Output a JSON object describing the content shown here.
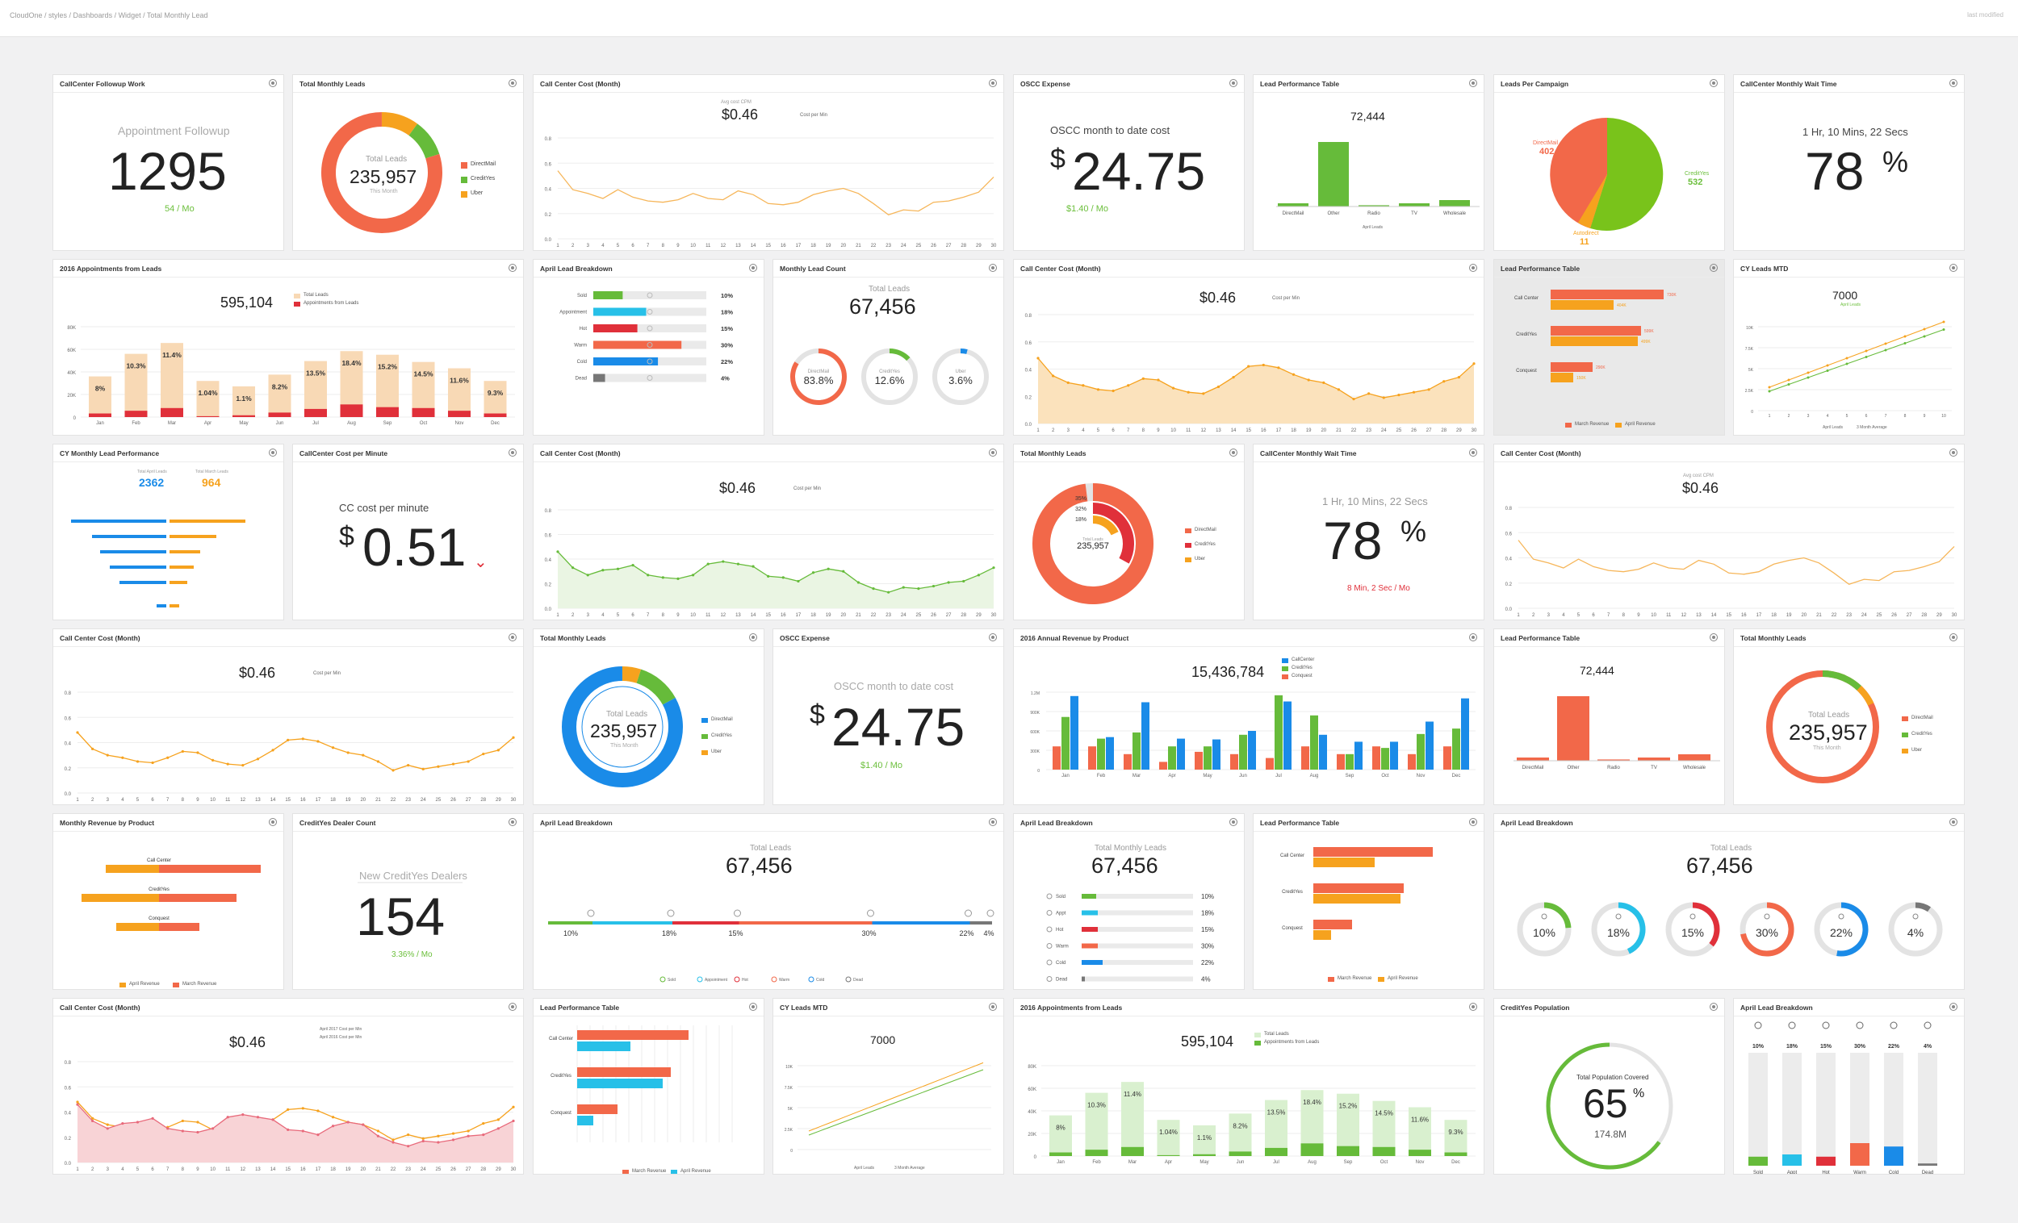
{
  "breadcrumb": "CloudOne / styles / Dashboards / Widget / Total Monthly Lead",
  "header_right": "last modified",
  "colors": {
    "orange": "#f26849",
    "green": "#66bb3a",
    "amber": "#f6a21e",
    "blue": "#1a8be8",
    "red": "#e0303a",
    "cyan": "#27c0e8",
    "peach": "#f8d9b5"
  },
  "w": {
    "followup": {
      "title": "CallCenter Followup Work",
      "label": "Appointment Followup",
      "value": "1295",
      "delta": "54 / Mo"
    },
    "tml1": {
      "title": "Total Monthly Leads",
      "center_label": "Total Leads",
      "value": "235,957",
      "sub": "This Month",
      "legend": [
        "DirectMail",
        "CreditYes",
        "Uber"
      ]
    },
    "ccc1": {
      "title": "Call Center Cost (Month)",
      "avg_label": "Avg cost CPM",
      "value": "$0.46",
      "legend": "Cost per Min"
    },
    "oscc1": {
      "title": "OSCC Expense",
      "label": "OSCC month to date cost",
      "currency": "$",
      "value": "24.75",
      "delta": "$1.40 / Mo"
    },
    "lpt1": {
      "title": "Lead Performance Table",
      "value": "72,444",
      "sub": "April Leads",
      "cats": [
        "DirectMail",
        "Other",
        "Radio",
        "TV",
        "Wholesale"
      ],
      "legend": "April Leads"
    },
    "lpc": {
      "title": "Leads Per Campaign",
      "a_label": "DirectMail",
      "a_val": "402",
      "b_label": "CreditYes",
      "b_val": "532",
      "c_label": "Autodirect",
      "c_val": "11"
    },
    "wait1": {
      "title": "CallCenter Monthly Wait Time",
      "label": "1 Hr, 10 Mins, 22 Secs",
      "value": "78",
      "unit": "%"
    },
    "appt1": {
      "title": "2016 Appointments from Leads",
      "value": "595,104",
      "legend": [
        "Total Leads",
        "Appointments from Leads"
      ],
      "months": [
        "Jan",
        "Feb",
        "Mar",
        "Apr",
        "May",
        "Jun",
        "Jul",
        "Aug",
        "Sep",
        "Oct",
        "Nov",
        "Dec"
      ],
      "pct": [
        "8%",
        "10.3%",
        "11.4%",
        "1.04%",
        "1.1%",
        "8.2%",
        "13.5%",
        "18.4%",
        "15.2%",
        "14.5%",
        "11.6%",
        "9.3%"
      ]
    },
    "alb1": {
      "title": "April Lead Breakdown",
      "rows": [
        {
          "label": "Sold",
          "pct": "10%"
        },
        {
          "label": "Appointment",
          "pct": "18%"
        },
        {
          "label": "Hot",
          "pct": "15%"
        },
        {
          "label": "Warm",
          "pct": "30%"
        },
        {
          "label": "Cold",
          "pct": "22%"
        },
        {
          "label": "Dead",
          "pct": "4%"
        }
      ]
    },
    "mlc": {
      "title": "Monthly Lead Count",
      "label": "Total Leads",
      "value": "67,456",
      "rings": [
        {
          "label": "DirectMail",
          "pct": "83.8%"
        },
        {
          "label": "CreditYes",
          "pct": "12.6%"
        },
        {
          "label": "Uber",
          "pct": "3.6%"
        }
      ]
    },
    "ccc2": {
      "title": "Call Center Cost (Month)",
      "value": "$0.46",
      "legend": "Cost per Min"
    },
    "lpt2": {
      "title": "Lead Performance Table",
      "cats": [
        "Call Center",
        "CreditYes",
        "Conquest"
      ],
      "legend": [
        "March Revenue",
        "April Revenue"
      ]
    },
    "cymtd1": {
      "title": "CY Leads MTD",
      "value": "7000",
      "sub": "April Leads",
      "legend": [
        "April Leads",
        "3 Month Average"
      ]
    },
    "cymlp": {
      "title": "CY Monthly Lead Performance",
      "a_label": "Total April Leads",
      "a_val": "2362",
      "b_label": "Total March Leads",
      "b_val": "964"
    },
    "ccpm": {
      "title": "CallCenter Cost per Minute",
      "label": "CC cost per minute",
      "currency": "$",
      "value": "0.51"
    },
    "ccc3": {
      "title": "Call Center Cost (Month)",
      "value": "$0.46",
      "legend": "Cost per Min"
    },
    "tml2": {
      "title": "Total Monthly Leads",
      "center_label": "Total Leads",
      "value": "235,957",
      "pcts": [
        "35%",
        "32%",
        "18%"
      ],
      "legend": [
        "DirectMail",
        "CreditYes",
        "Uber"
      ]
    },
    "wait2": {
      "title": "CallCenter Monthly Wait Time",
      "label": "1 Hr, 10 Mins, 22 Secs",
      "value": "78",
      "unit": "%",
      "delta": "8 Min, 2 Sec / Mo"
    },
    "ccc4": {
      "title": "Call Center Cost (Month)",
      "value": "$0.46",
      "avg_label": "Avg cost CPM"
    },
    "ccc5": {
      "title": "Call Center Cost (Month)",
      "value": "$0.46",
      "legend": "Cost per Min"
    },
    "tml3": {
      "title": "Total Monthly Leads",
      "center_label": "Total Leads",
      "value": "235,957",
      "sub": "This Month",
      "legend": [
        "DirectMail",
        "CreditYes",
        "Uber"
      ]
    },
    "oscc2": {
      "title": "OSCC Expense",
      "label": "OSCC month to date cost",
      "currency": "$",
      "value": "24.75",
      "delta": "$1.40 / Mo"
    },
    "arp": {
      "title": "2016 Annual Revenue by Product",
      "value": "15,436,784",
      "legend": [
        "CallCenter",
        "CreditYes",
        "Conquest"
      ]
    },
    "lpt3": {
      "title": "Lead Performance Table",
      "value": "72,444",
      "cats": [
        "DirectMail",
        "Other",
        "Radio",
        "TV",
        "Wholesale"
      ]
    },
    "tml4": {
      "title": "Total Monthly Leads",
      "center_label": "Total Leads",
      "value": "235,957",
      "sub": "This Month",
      "legend": [
        "DirectMail",
        "CreditYes",
        "Uber"
      ]
    },
    "mrp": {
      "title": "Monthly Revenue by Product",
      "cats": [
        "Call Center",
        "CreditYes",
        "Conquest"
      ],
      "legend": [
        "April Revenue",
        "March Revenue"
      ]
    },
    "cydc": {
      "title": "CreditYes Dealer Count",
      "label": "New CreditYes Dealers",
      "value": "154",
      "delta": "3.36% / Mo"
    },
    "alb2": {
      "title": "April Lead Breakdown",
      "label": "Total Leads",
      "value": "67,456",
      "pcts": [
        "10%",
        "18%",
        "15%",
        "30%",
        "22%",
        "4%"
      ],
      "legend": [
        "Sold",
        "Appointment",
        "Hot",
        "Warm",
        "Cold",
        "Dead"
      ]
    },
    "alb3": {
      "title": "April Lead Breakdown",
      "label": "Total Monthly Leads",
      "value": "67,456",
      "rows": [
        {
          "label": "Sold",
          "pct": "10%"
        },
        {
          "label": "Appt",
          "pct": "18%"
        },
        {
          "label": "Hot",
          "pct": "15%"
        },
        {
          "label": "Warm",
          "pct": "30%"
        },
        {
          "label": "Cold",
          "pct": "22%"
        },
        {
          "label": "Dead",
          "pct": "4%"
        }
      ]
    },
    "lpt4": {
      "title": "Lead Performance Table",
      "cats": [
        "Call Center",
        "CreditYes",
        "Conquest"
      ],
      "legend": [
        "March Revenue",
        "April Revenue"
      ]
    },
    "alb4": {
      "title": "April Lead Breakdown",
      "label": "Total Leads",
      "value": "67,456",
      "pcts": [
        "10%",
        "18%",
        "15%",
        "30%",
        "22%",
        "4%"
      ]
    },
    "ccc6": {
      "title": "Call Center Cost (Month)",
      "value": "$0.46",
      "legend": [
        "April 2017 Cost per Min",
        "April 2016 Cost per Min"
      ]
    },
    "lpt5": {
      "title": "Lead Performance Table",
      "cats": [
        "Call Center",
        "CreditYes",
        "Conquest"
      ],
      "legend": [
        "March Revenue",
        "April Revenue"
      ]
    },
    "cymtd2": {
      "title": "CY Leads MTD",
      "value": "7000",
      "legend": [
        "April Leads",
        "3 Month Average"
      ]
    },
    "appt2": {
      "title": "2016 Appointments from Leads",
      "value": "595,104",
      "legend": [
        "Total Leads",
        "Appointments from Leads"
      ],
      "months": [
        "Jan",
        "Feb",
        "Mar",
        "Apr",
        "May",
        "Jun",
        "Jul",
        "Aug",
        "Sep",
        "Oct",
        "Nov",
        "Dec"
      ],
      "pct": [
        "8%",
        "10.3%",
        "11.4%",
        "1.04%",
        "1.1%",
        "8.2%",
        "13.5%",
        "18.4%",
        "15.2%",
        "14.5%",
        "11.6%",
        "9.3%"
      ]
    },
    "cyp": {
      "title": "CreditYes Population",
      "label": "Total Population Covered",
      "value": "65",
      "unit": "%",
      "sub": "174.8M"
    },
    "alb5": {
      "title": "April Lead Breakdown",
      "pcts": [
        "10%",
        "18%",
        "15%",
        "30%",
        "22%",
        "4%"
      ],
      "labels": [
        "Sold",
        "Appt",
        "Hot",
        "Warm",
        "Cold",
        "Dead"
      ]
    }
  }
}
